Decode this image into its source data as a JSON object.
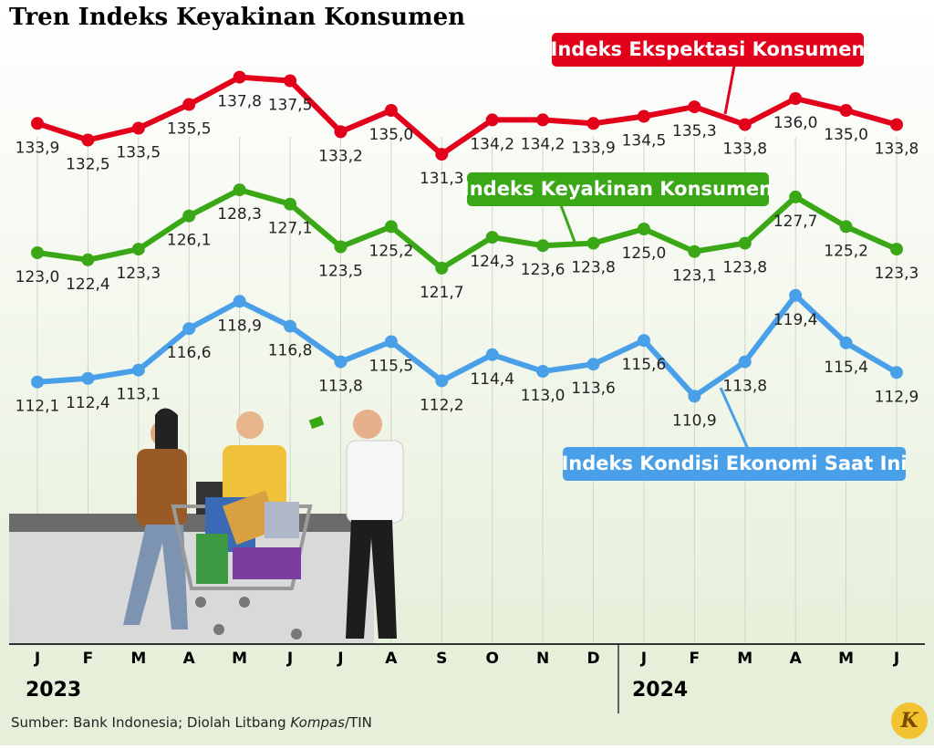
{
  "chart_data": {
    "type": "line",
    "title": "Tren Indeks Keyakinan Konsumen",
    "categories": [
      "J",
      "F",
      "M",
      "A",
      "M",
      "J",
      "J",
      "A",
      "S",
      "O",
      "N",
      "D",
      "J",
      "F",
      "M",
      "A",
      "M",
      "J"
    ],
    "year_labels": [
      "2023",
      "2024"
    ],
    "ylim": [
      90,
      144
    ],
    "series": [
      {
        "name": "Indeks Ekspektasi Konsumen",
        "color": "#e2001a",
        "values": [
          133.9,
          132.5,
          133.5,
          135.5,
          137.8,
          137.5,
          133.2,
          135.0,
          131.3,
          134.2,
          134.2,
          133.9,
          134.5,
          135.3,
          133.8,
          136.0,
          135.0,
          133.8
        ],
        "value_labels": [
          "133,9",
          "132,5",
          "133,5",
          "135,5",
          "137,8",
          "137,5",
          "133,2",
          "135,0",
          "131,3",
          "134,2",
          "134,2",
          "133,9",
          "134,5",
          "135,3",
          "133,8",
          "136,0",
          "135,0",
          "133,8"
        ]
      },
      {
        "name": "Indeks Keyakinan Konsumen",
        "color": "#3aa816",
        "values": [
          123.0,
          122.4,
          123.3,
          126.1,
          128.3,
          127.1,
          123.5,
          125.2,
          121.7,
          124.3,
          123.6,
          123.8,
          125.0,
          123.1,
          123.8,
          127.7,
          125.2,
          123.3
        ],
        "value_labels": [
          "123,0",
          "122,4",
          "123,3",
          "126,1",
          "128,3",
          "127,1",
          "123,5",
          "125,2",
          "121,7",
          "124,3",
          "123,6",
          "123,8",
          "125,0",
          "123,1",
          "123,8",
          "127,7",
          "125,2",
          "123,3"
        ]
      },
      {
        "name": "Indeks Kondisi Ekonomi Saat Ini",
        "color": "#4aa0e8",
        "values": [
          112.1,
          112.4,
          113.1,
          116.6,
          118.9,
          116.8,
          113.8,
          115.5,
          112.2,
          114.4,
          113.0,
          113.6,
          115.6,
          110.9,
          113.8,
          119.4,
          115.4,
          112.9
        ],
        "value_labels": [
          "112,1",
          "112,4",
          "113,1",
          "116,6",
          "118,9",
          "116,8",
          "113,8",
          "115,5",
          "112,2",
          "114,4",
          "113,0",
          "113,6",
          "115,6",
          "110,9",
          "113,8",
          "119,4",
          "115,4",
          "112,9"
        ]
      }
    ],
    "source": [
      "Sumber: Bank Indonesia; Diolah Litbang ",
      "Kompas",
      "/TIN"
    ],
    "logo": "K"
  }
}
